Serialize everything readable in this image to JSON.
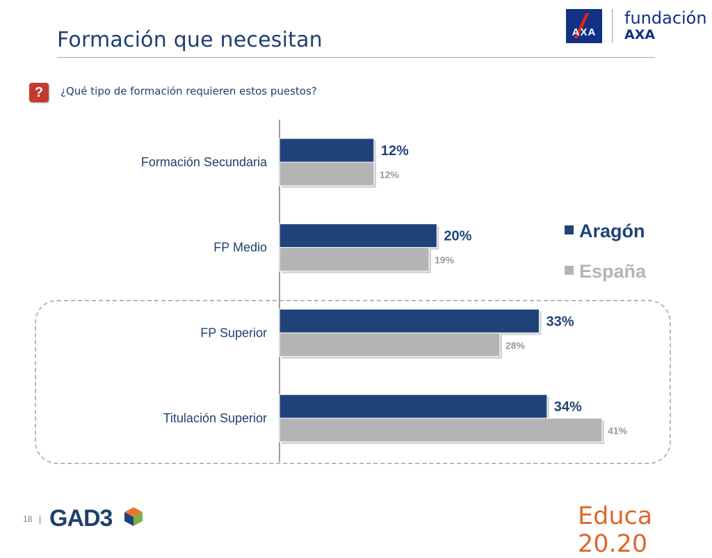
{
  "header": {
    "title": "Formación que necesitan",
    "logo_mark_text": "AXA",
    "logo_line1": "fundación",
    "logo_line2": "AXA"
  },
  "question": {
    "badge": "?",
    "text": "¿Qué tipo de formación requieren estos puestos?"
  },
  "chart_data": {
    "type": "bar",
    "orientation": "horizontal",
    "categories": [
      "Formación Secundaria",
      "FP Medio",
      "FP Superior",
      "Titulación Superior"
    ],
    "series": [
      {
        "name": "Aragón",
        "values": [
          12,
          20,
          33,
          34
        ],
        "labels": [
          "12%",
          "20%",
          "33%",
          "34%"
        ],
        "color": "#1f4378"
      },
      {
        "name": "España",
        "values": [
          12,
          19,
          28,
          41
        ],
        "labels": [
          "12%",
          "19%",
          "28%",
          "41%"
        ],
        "color": "#b4b4b4"
      }
    ],
    "unit": "%",
    "xlim": [
      0,
      100
    ],
    "grid": false,
    "legend_position": "right",
    "highlighted_categories": [
      "FP Superior",
      "Titulación Superior"
    ]
  },
  "footer": {
    "page_number": "18",
    "brand_left": "GAD3",
    "brand_right": "Educa 20.20"
  },
  "colors": {
    "title": "#1f3f6e",
    "accent_red": "#c33a2f",
    "educa_orange": "#e0662a"
  }
}
